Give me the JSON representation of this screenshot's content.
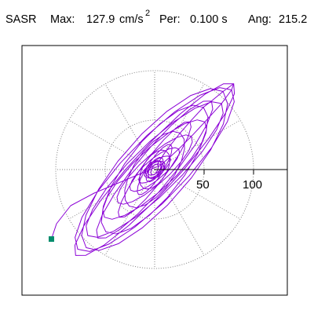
{
  "title": {
    "station": "SASR",
    "max_label": "Max:",
    "max_value": "127.9",
    "max_unit": "cm/s",
    "max_unit_exp": "2",
    "per_label": "Per:",
    "per_value": "0.100 s",
    "ang_label": "Ang:",
    "ang_value": "215.2"
  },
  "axis": {
    "tick_labels": [
      "50",
      "100"
    ],
    "tick_values": [
      50,
      100
    ]
  },
  "colors": {
    "trace": "#8b00d6",
    "marker": "#008c6c",
    "frame": "#000000",
    "grid": "#808080"
  }
}
